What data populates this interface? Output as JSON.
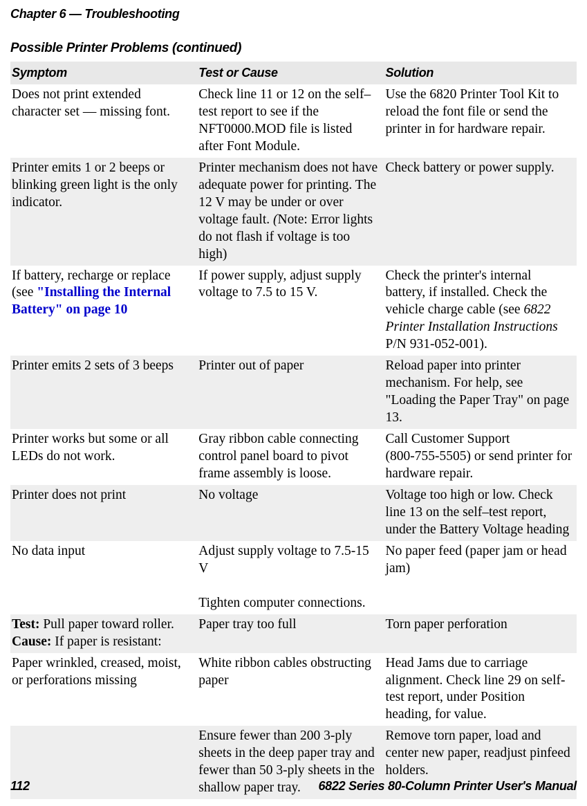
{
  "header": {
    "chapter": "Chapter 6 — Troubleshooting",
    "table_title": "Possible Printer Problems  (continued)"
  },
  "table": {
    "columns": [
      "Symptom",
      "Test or Cause",
      "Solution"
    ],
    "col_widths_pct": [
      33,
      33,
      34
    ],
    "header_bg": "#e8e8e8",
    "shade_bg": "#eeeeee",
    "body_fontsize": 19.5,
    "header_fontsize": 18,
    "rows": [
      {
        "shade": false,
        "symptom": "Does not print extended character set — missing font.",
        "cause": "Check line 11 or 12 on the self–test report to see if the NFT0000.MOD file is listed after Font Module.",
        "solution": "Use the 6820 Printer Tool Kit to reload the font file or send the printer in for hardware repair."
      },
      {
        "shade": true,
        "symptom": "Printer emits 1 or 2 beeps or blinking green light is the only indicator.",
        "cause_pre": "Printer mechanism does not have adequate power for printing. The 12 V may be under or over voltage fault. ",
        "cause_italic_open": "(",
        "cause_post_italic": "Note: Error lights do not flash if voltage is too high)",
        "solution": "Check battery or power supply."
      },
      {
        "shade": false,
        "symptom_pre": "If battery, recharge or replace (see ",
        "symptom_link": "\"Installing the Internal Battery\" on page 10",
        "cause": "If power supply, adjust supply voltage to 7.5 to 15 V.",
        "solution_pre": "Check the printer's internal battery, if installed. Check the vehicle charge cable (see ",
        "solution_italic": "6822 Printer Installation Instructions",
        "solution_post": " P/N 931-052-001)."
      },
      {
        "shade": true,
        "symptom": "Printer emits 2 sets of 3 beeps",
        "cause": "Printer out of paper",
        "solution": "Reload paper into printer mechanism. For help, see \"Loading the Paper Tray\" on page 13."
      },
      {
        "shade": false,
        "symptom": "Printer works but some or all LEDs do not work.",
        "cause": "Gray ribbon cable connecting control panel board to pivot frame assembly is loose.",
        "solution": "Call Customer Support\n(800-755-5505) or send printer for hardware repair."
      },
      {
        "shade": true,
        "symptom": "Printer does not print",
        "cause": "No voltage",
        "solution": "Voltage too high or low. Check line 13 on the self–test report, under the Battery Voltage heading"
      },
      {
        "shade": false,
        "symptom": "No data input",
        "cause": "Adjust supply voltage to 7.5-15 V\n\nTighten computer connections.",
        "solution": "No paper feed (paper jam or head jam)"
      },
      {
        "shade": true,
        "symptom_bold1": "Test:",
        "symptom_mid1": " Pull paper toward roller. ",
        "symptom_bold2": "Cause:",
        "symptom_mid2": " If paper is resistant:",
        "cause": "Paper tray too full",
        "solution": "Torn paper perforation"
      },
      {
        "shade": false,
        "symptom": "Paper wrinkled, creased, moist, or perforations missing",
        "cause": "White ribbon cables obstructing paper",
        "solution": "Head Jams due to carriage alignment. Check line 29 on self-test report, under Position heading, for value."
      },
      {
        "shade": true,
        "symptom": "",
        "cause": "Ensure fewer than 200 3-ply sheets in the deep paper tray and fewer than 50 3-ply sheets in the shallow paper tray.",
        "solution": "Remove torn paper, load and center new paper, readjust pinfeed holders."
      }
    ]
  },
  "footer": {
    "page": "112",
    "title": "6822 Series 80-Column Printer User's Manual"
  },
  "colors": {
    "link": "#0000cc",
    "text": "#000000",
    "background": "#ffffff"
  }
}
